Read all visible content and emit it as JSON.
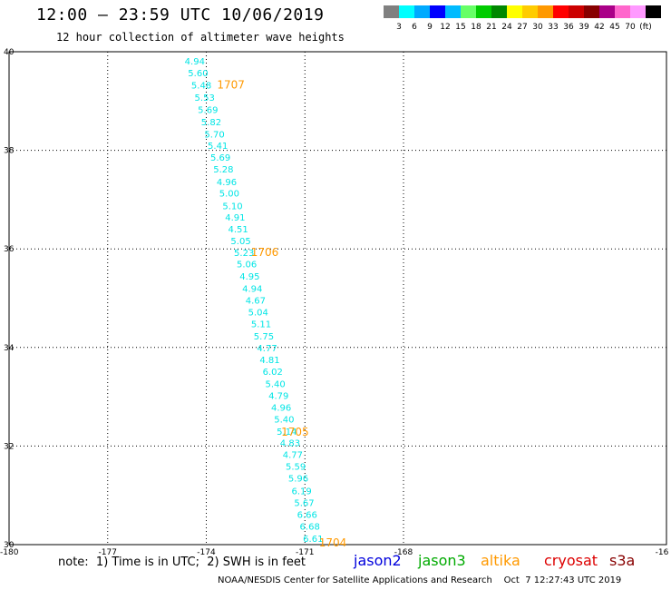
{
  "header": {
    "title": "12:00 – 23:59 UTC 10/06/2019",
    "subtitle": "12 hour collection of altimeter wave heights"
  },
  "colorbar": {
    "colors": [
      "#808080",
      "#00ffff",
      "#00aaff",
      "#0000ff",
      "#00bbff",
      "#66ff66",
      "#00cc00",
      "#008800",
      "#ffff00",
      "#ffcc00",
      "#ff9900",
      "#ff0000",
      "#cc0000",
      "#880000",
      "#aa0088",
      "#ff66cc",
      "#ff99ff",
      "#000000"
    ],
    "labels": [
      "3",
      "6",
      "9",
      "12",
      "15",
      "18",
      "21",
      "24",
      "27",
      "30",
      "33",
      "36",
      "39",
      "42",
      "45",
      "70",
      "(ft)"
    ]
  },
  "chart_data": {
    "type": "scatter",
    "xlim": [
      -180,
      -160
    ],
    "ylim": [
      30,
      40
    ],
    "x_ticks": [
      "-180",
      "-177",
      "-174",
      "-171",
      "-168",
      "-16"
    ],
    "y_ticks": [
      "40",
      "38",
      "36",
      "34",
      "32",
      "30"
    ],
    "grid": true,
    "points": [
      {
        "x": -174.35,
        "y": 39.82,
        "v": "4.94"
      },
      {
        "x": -174.25,
        "y": 39.58,
        "v": "5.60"
      },
      {
        "x": -174.15,
        "y": 39.33,
        "v": "5.48"
      },
      {
        "x": -174.05,
        "y": 39.08,
        "v": "5.53"
      },
      {
        "x": -173.95,
        "y": 38.83,
        "v": "5.69"
      },
      {
        "x": -173.85,
        "y": 38.58,
        "v": "5.82"
      },
      {
        "x": -173.75,
        "y": 38.33,
        "v": "5.70"
      },
      {
        "x": -173.65,
        "y": 38.1,
        "v": "5.41"
      },
      {
        "x": -173.57,
        "y": 37.86,
        "v": "5.69"
      },
      {
        "x": -173.48,
        "y": 37.62,
        "v": "5.28"
      },
      {
        "x": -173.38,
        "y": 37.37,
        "v": "4.96"
      },
      {
        "x": -173.3,
        "y": 37.14,
        "v": "5.00"
      },
      {
        "x": -173.2,
        "y": 36.88,
        "v": "5.10"
      },
      {
        "x": -173.12,
        "y": 36.65,
        "v": "4.91"
      },
      {
        "x": -173.03,
        "y": 36.41,
        "v": "4.51"
      },
      {
        "x": -172.95,
        "y": 36.17,
        "v": "5.05"
      },
      {
        "x": -172.85,
        "y": 35.93,
        "v": "5.23"
      },
      {
        "x": -172.77,
        "y": 35.7,
        "v": "5.06"
      },
      {
        "x": -172.68,
        "y": 35.45,
        "v": "4.95"
      },
      {
        "x": -172.6,
        "y": 35.2,
        "v": "4.94"
      },
      {
        "x": -172.5,
        "y": 34.96,
        "v": "4.67"
      },
      {
        "x": -172.42,
        "y": 34.72,
        "v": "5.04"
      },
      {
        "x": -172.33,
        "y": 34.48,
        "v": "5.11"
      },
      {
        "x": -172.25,
        "y": 34.24,
        "v": "5.75"
      },
      {
        "x": -172.15,
        "y": 34.0,
        "v": "4.77"
      },
      {
        "x": -172.07,
        "y": 33.76,
        "v": "4.81"
      },
      {
        "x": -171.98,
        "y": 33.52,
        "v": "6.02"
      },
      {
        "x": -171.9,
        "y": 33.27,
        "v": "5.40"
      },
      {
        "x": -171.8,
        "y": 33.03,
        "v": "4.79"
      },
      {
        "x": -171.72,
        "y": 32.79,
        "v": "4.96"
      },
      {
        "x": -171.63,
        "y": 32.55,
        "v": "5.40"
      },
      {
        "x": -171.55,
        "y": 32.3,
        "v": "5.14"
      },
      {
        "x": -171.45,
        "y": 32.07,
        "v": "4.83"
      },
      {
        "x": -171.37,
        "y": 31.83,
        "v": "4.77"
      },
      {
        "x": -171.28,
        "y": 31.59,
        "v": "5.59"
      },
      {
        "x": -171.2,
        "y": 31.35,
        "v": "5.96"
      },
      {
        "x": -171.1,
        "y": 31.1,
        "v": "6.19"
      },
      {
        "x": -171.02,
        "y": 30.86,
        "v": "5.67"
      },
      {
        "x": -170.93,
        "y": 30.62,
        "v": "6.66"
      },
      {
        "x": -170.85,
        "y": 30.38,
        "v": "6.68"
      },
      {
        "x": -170.75,
        "y": 30.13,
        "v": "6.61"
      }
    ],
    "time_labels": [
      {
        "x": -173.25,
        "y": 39.33,
        "text": "1707"
      },
      {
        "x": -172.22,
        "y": 35.93,
        "text": "1706"
      },
      {
        "x": -171.3,
        "y": 32.28,
        "text": "1705"
      },
      {
        "x": -170.15,
        "y": 30.04,
        "text": "1704"
      }
    ],
    "point_color": "#00e5e5",
    "time_label_color": "#ff9900"
  },
  "note": "note:  1) Time is in UTC;  2) SWH is in feet",
  "legend": [
    {
      "text": "jason2",
      "color": "#0000dd"
    },
    {
      "text": "jason3",
      "color": "#00aa00"
    },
    {
      "text": "altika",
      "color": "#ff9900"
    },
    {
      "text": "cryosat",
      "color": "#dd0000"
    },
    {
      "text": "s3a",
      "color": "#880000"
    }
  ],
  "footer": "NOAA/NESDIS Center for Satellite Applications and Research    Oct  7 12:27:43 UTC 2019"
}
